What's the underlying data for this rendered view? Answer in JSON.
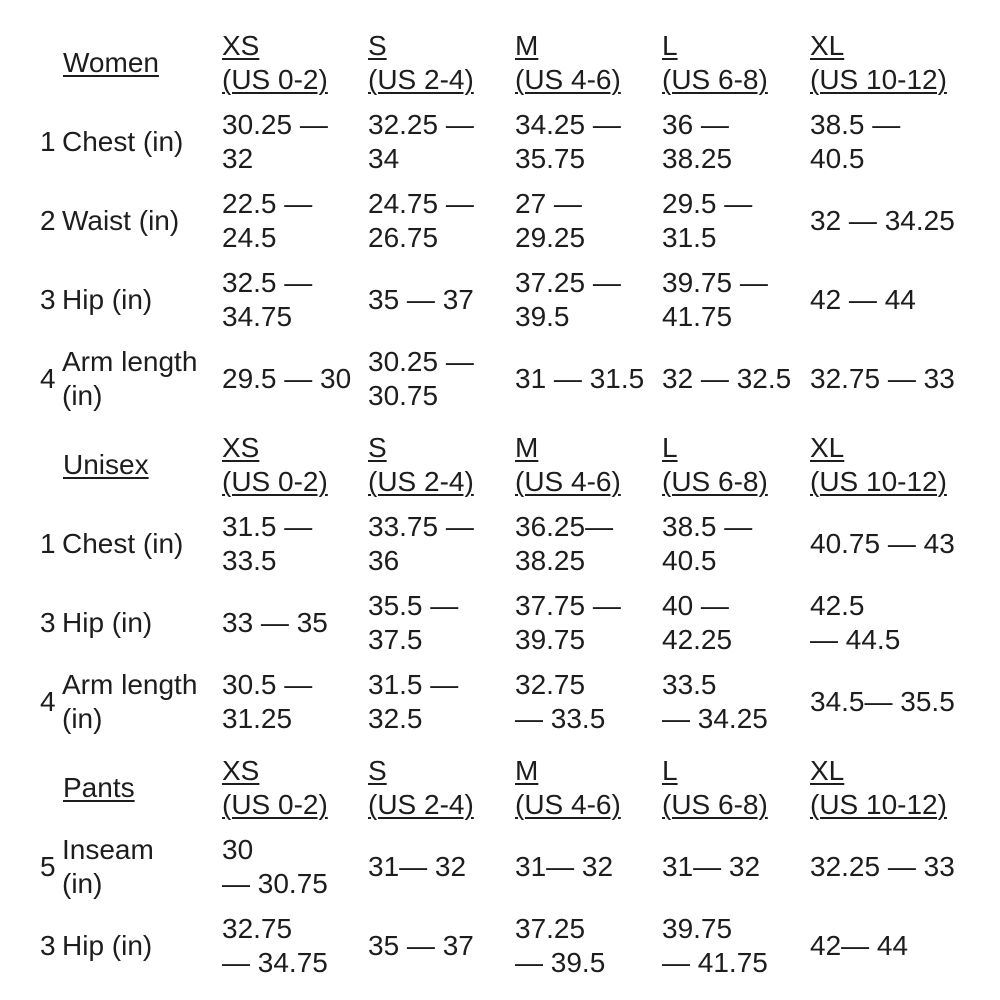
{
  "page": {
    "background": "#ffffff",
    "text_color": "#1d1d1d"
  },
  "chart_data": [
    {
      "type": "table",
      "title": "Women",
      "columns": [
        {
          "size": "XS",
          "us": "(US 0-2)"
        },
        {
          "size": "S",
          "us": "(US 2-4)"
        },
        {
          "size": "M",
          "us": "(US 4-6)"
        },
        {
          "size": "L",
          "us": "(US 6-8)"
        },
        {
          "size": "XL",
          "us": "(US 10-12)"
        }
      ],
      "rows": [
        {
          "num": "1",
          "label": "Chest (in)",
          "values": [
            "30.25 —\n32",
            "32.25 —\n34",
            "34.25 —\n35.75",
            "36 —\n38.25",
            "38.5 —\n40.5"
          ]
        },
        {
          "num": "2",
          "label": "Waist (in)",
          "values": [
            "22.5 —\n24.5",
            "24.75 —\n26.75",
            "27 —\n29.25",
            "29.5 —\n31.5",
            "32 — 34.25"
          ]
        },
        {
          "num": "3",
          "label": "Hip (in)",
          "values": [
            "32.5 —\n34.75",
            "35 — 37",
            "37.25 —\n39.5",
            "39.75 —\n41.75",
            "42 — 44"
          ]
        },
        {
          "num": "4",
          "label": "Arm length\n(in)",
          "values": [
            "29.5 — 30",
            "30.25 —\n30.75",
            "31 — 31.5",
            "32 — 32.5",
            "32.75 — 33"
          ]
        }
      ]
    },
    {
      "type": "table",
      "title": "Unisex",
      "columns": [
        {
          "size": "XS",
          "us": "(US 0-2)"
        },
        {
          "size": "S",
          "us": "(US 2-4)"
        },
        {
          "size": "M",
          "us": "(US 4-6)"
        },
        {
          "size": "L",
          "us": "(US 6-8)"
        },
        {
          "size": "XL",
          "us": "(US 10-12)"
        }
      ],
      "rows": [
        {
          "num": "1",
          "label": "Chest (in)",
          "values": [
            "31.5 —\n33.5",
            "33.75 —\n36",
            "36.25—\n38.25",
            "38.5 —\n40.5",
            "40.75 — 43"
          ]
        },
        {
          "num": "3",
          "label": "Hip (in)",
          "values": [
            "33 — 35",
            "35.5 —\n37.5",
            "37.75 —\n39.75",
            "40 —\n42.25",
            "42.5\n— 44.5"
          ]
        },
        {
          "num": "4",
          "label": "Arm length\n(in)",
          "values": [
            "30.5 —\n31.25",
            "31.5 —\n32.5",
            "32.75\n— 33.5",
            "33.5\n— 34.25",
            "34.5— 35.5"
          ]
        }
      ]
    },
    {
      "type": "table",
      "title": "Pants",
      "columns": [
        {
          "size": "XS",
          "us": "(US 0-2)"
        },
        {
          "size": "S",
          "us": "(US 2-4)"
        },
        {
          "size": "M",
          "us": "(US 4-6)"
        },
        {
          "size": "L",
          "us": "(US 6-8)"
        },
        {
          "size": "XL",
          "us": "(US 10-12)"
        }
      ],
      "rows": [
        {
          "num": "5",
          "label": "Inseam\n(in)",
          "values": [
            "30\n— 30.75",
            "31— 32",
            "31— 32",
            "31— 32",
            "32.25 — 33"
          ]
        },
        {
          "num": "3",
          "label": "Hip (in)",
          "values": [
            "32.75\n— 34.75",
            "35 — 37",
            "37.25\n— 39.5",
            "39.75\n— 41.75",
            "42— 44"
          ]
        }
      ]
    }
  ]
}
